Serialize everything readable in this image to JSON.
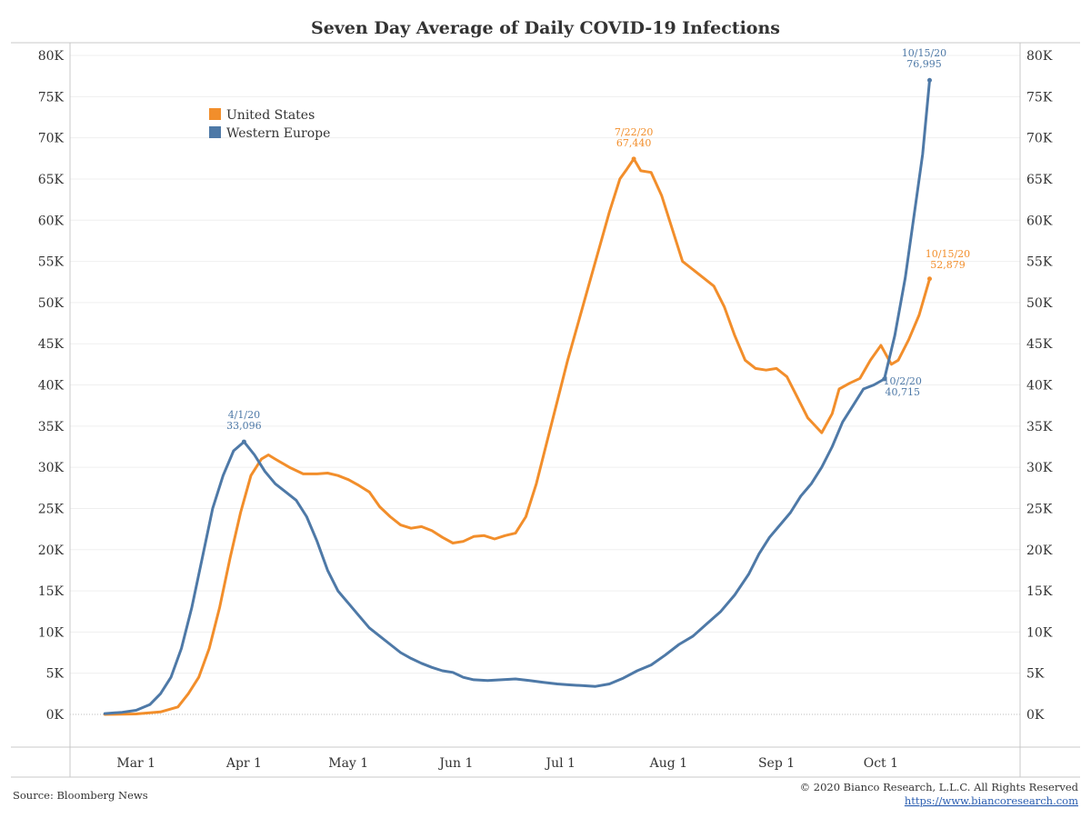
{
  "chart_data": {
    "type": "line",
    "title": "Seven Day Average of Daily COVID-19 Infections",
    "xlabel": "",
    "ylabel": "",
    "ylim": [
      0,
      80000
    ],
    "y_ticks": [
      "0K",
      "5K",
      "10K",
      "15K",
      "20K",
      "25K",
      "30K",
      "35K",
      "40K",
      "45K",
      "50K",
      "55K",
      "60K",
      "65K",
      "70K",
      "75K",
      "80K"
    ],
    "x_ticks": [
      "Mar 1",
      "Apr 1",
      "May 1",
      "Jun 1",
      "Jul 1",
      "Aug 1",
      "Sep 1",
      "Oct 1"
    ],
    "x_tick_dates": [
      "2020-03-01",
      "2020-04-01",
      "2020-05-01",
      "2020-06-01",
      "2020-07-01",
      "2020-08-01",
      "2020-09-01",
      "2020-10-01"
    ],
    "x_range": [
      "2020-02-11",
      "2020-11-10"
    ],
    "grid": true,
    "legend_position": "top-left",
    "series": [
      {
        "name": "United States",
        "color": "#f28e2b",
        "points": [
          [
            "2020-02-21",
            0
          ],
          [
            "2020-03-01",
            50
          ],
          [
            "2020-03-08",
            300
          ],
          [
            "2020-03-13",
            900
          ],
          [
            "2020-03-16",
            2500
          ],
          [
            "2020-03-19",
            4500
          ],
          [
            "2020-03-22",
            8000
          ],
          [
            "2020-03-25",
            13000
          ],
          [
            "2020-03-28",
            19000
          ],
          [
            "2020-03-31",
            24500
          ],
          [
            "2020-04-03",
            29000
          ],
          [
            "2020-04-06",
            31000
          ],
          [
            "2020-04-08",
            31500
          ],
          [
            "2020-04-10",
            31000
          ],
          [
            "2020-04-14",
            30000
          ],
          [
            "2020-04-18",
            29200
          ],
          [
            "2020-04-22",
            29200
          ],
          [
            "2020-04-25",
            29300
          ],
          [
            "2020-04-28",
            29000
          ],
          [
            "2020-05-01",
            28500
          ],
          [
            "2020-05-04",
            27800
          ],
          [
            "2020-05-07",
            27000
          ],
          [
            "2020-05-10",
            25200
          ],
          [
            "2020-05-13",
            24000
          ],
          [
            "2020-05-16",
            23000
          ],
          [
            "2020-05-19",
            22600
          ],
          [
            "2020-05-22",
            22800
          ],
          [
            "2020-05-25",
            22300
          ],
          [
            "2020-05-28",
            21500
          ],
          [
            "2020-05-31",
            20800
          ],
          [
            "2020-06-03",
            21000
          ],
          [
            "2020-06-06",
            21600
          ],
          [
            "2020-06-09",
            21700
          ],
          [
            "2020-06-12",
            21300
          ],
          [
            "2020-06-15",
            21700
          ],
          [
            "2020-06-18",
            22000
          ],
          [
            "2020-06-21",
            24000
          ],
          [
            "2020-06-24",
            28000
          ],
          [
            "2020-06-27",
            33000
          ],
          [
            "2020-06-30",
            38000
          ],
          [
            "2020-07-03",
            43000
          ],
          [
            "2020-07-06",
            47500
          ],
          [
            "2020-07-09",
            52000
          ],
          [
            "2020-07-12",
            56500
          ],
          [
            "2020-07-15",
            61000
          ],
          [
            "2020-07-18",
            65000
          ],
          [
            "2020-07-20",
            66200
          ],
          [
            "2020-07-22",
            67440
          ],
          [
            "2020-07-24",
            66000
          ],
          [
            "2020-07-27",
            65800
          ],
          [
            "2020-07-30",
            63000
          ],
          [
            "2020-08-02",
            59000
          ],
          [
            "2020-08-05",
            55000
          ],
          [
            "2020-08-08",
            54000
          ],
          [
            "2020-08-11",
            53000
          ],
          [
            "2020-08-14",
            52000
          ],
          [
            "2020-08-17",
            49500
          ],
          [
            "2020-08-20",
            46000
          ],
          [
            "2020-08-23",
            43000
          ],
          [
            "2020-08-26",
            42000
          ],
          [
            "2020-08-29",
            41800
          ],
          [
            "2020-09-01",
            42000
          ],
          [
            "2020-09-04",
            41000
          ],
          [
            "2020-09-07",
            38500
          ],
          [
            "2020-09-10",
            36000
          ],
          [
            "2020-09-14",
            34200
          ],
          [
            "2020-09-17",
            36500
          ],
          [
            "2020-09-19",
            39500
          ],
          [
            "2020-09-22",
            40200
          ],
          [
            "2020-09-25",
            40800
          ],
          [
            "2020-09-28",
            43000
          ],
          [
            "2020-10-01",
            44800
          ],
          [
            "2020-10-04",
            42500
          ],
          [
            "2020-10-06",
            43000
          ],
          [
            "2020-10-09",
            45500
          ],
          [
            "2020-10-12",
            48500
          ],
          [
            "2020-10-15",
            52879
          ]
        ]
      },
      {
        "name": "Western Europe",
        "color": "#4e79a7",
        "points": [
          [
            "2020-02-21",
            100
          ],
          [
            "2020-02-26",
            250
          ],
          [
            "2020-03-01",
            500
          ],
          [
            "2020-03-05",
            1200
          ],
          [
            "2020-03-08",
            2500
          ],
          [
            "2020-03-11",
            4500
          ],
          [
            "2020-03-14",
            8000
          ],
          [
            "2020-03-17",
            13000
          ],
          [
            "2020-03-20",
            19000
          ],
          [
            "2020-03-23",
            25000
          ],
          [
            "2020-03-26",
            29000
          ],
          [
            "2020-03-29",
            32000
          ],
          [
            "2020-04-01",
            33096
          ],
          [
            "2020-04-04",
            31500
          ],
          [
            "2020-04-07",
            29500
          ],
          [
            "2020-04-10",
            28000
          ],
          [
            "2020-04-13",
            27000
          ],
          [
            "2020-04-16",
            26000
          ],
          [
            "2020-04-19",
            24000
          ],
          [
            "2020-04-22",
            21000
          ],
          [
            "2020-04-25",
            17500
          ],
          [
            "2020-04-28",
            15000
          ],
          [
            "2020-05-01",
            13500
          ],
          [
            "2020-05-04",
            12000
          ],
          [
            "2020-05-07",
            10500
          ],
          [
            "2020-05-10",
            9500
          ],
          [
            "2020-05-13",
            8500
          ],
          [
            "2020-05-16",
            7500
          ],
          [
            "2020-05-19",
            6800
          ],
          [
            "2020-05-22",
            6200
          ],
          [
            "2020-05-25",
            5700
          ],
          [
            "2020-05-28",
            5300
          ],
          [
            "2020-05-31",
            5100
          ],
          [
            "2020-06-03",
            4500
          ],
          [
            "2020-06-06",
            4200
          ],
          [
            "2020-06-10",
            4100
          ],
          [
            "2020-06-14",
            4200
          ],
          [
            "2020-06-18",
            4300
          ],
          [
            "2020-06-22",
            4100
          ],
          [
            "2020-06-26",
            3900
          ],
          [
            "2020-06-30",
            3700
          ],
          [
            "2020-07-03",
            3600
          ],
          [
            "2020-07-07",
            3500
          ],
          [
            "2020-07-11",
            3400
          ],
          [
            "2020-07-15",
            3700
          ],
          [
            "2020-07-19",
            4400
          ],
          [
            "2020-07-23",
            5300
          ],
          [
            "2020-07-27",
            6000
          ],
          [
            "2020-07-31",
            7200
          ],
          [
            "2020-08-04",
            8500
          ],
          [
            "2020-08-08",
            9500
          ],
          [
            "2020-08-12",
            11000
          ],
          [
            "2020-08-16",
            12500
          ],
          [
            "2020-08-20",
            14500
          ],
          [
            "2020-08-24",
            17000
          ],
          [
            "2020-08-27",
            19500
          ],
          [
            "2020-08-30",
            21500
          ],
          [
            "2020-09-02",
            23000
          ],
          [
            "2020-09-05",
            24500
          ],
          [
            "2020-09-08",
            26500
          ],
          [
            "2020-09-11",
            28000
          ],
          [
            "2020-09-14",
            30000
          ],
          [
            "2020-09-17",
            32500
          ],
          [
            "2020-09-20",
            35500
          ],
          [
            "2020-09-23",
            37500
          ],
          [
            "2020-09-26",
            39500
          ],
          [
            "2020-09-29",
            40000
          ],
          [
            "2020-10-02",
            40715
          ],
          [
            "2020-10-05",
            46000
          ],
          [
            "2020-10-08",
            53000
          ],
          [
            "2020-10-11",
            62000
          ],
          [
            "2020-10-13",
            68000
          ],
          [
            "2020-10-15",
            76995
          ]
        ]
      }
    ],
    "annotations": [
      {
        "date_label": "4/1/20",
        "value_label": "33,096",
        "x": "2020-04-01",
        "y": 33096,
        "series": "Western Europe"
      },
      {
        "date_label": "7/22/20",
        "value_label": "67,440",
        "x": "2020-07-22",
        "y": 67440,
        "series": "United States"
      },
      {
        "date_label": "10/15/20",
        "value_label": "76,995",
        "x": "2020-10-15",
        "y": 76995,
        "series": "Western Europe"
      },
      {
        "date_label": "10/15/20",
        "value_label": "52,879",
        "x": "2020-10-15",
        "y": 52879,
        "series": "United States"
      },
      {
        "date_label": "10/2/20",
        "value_label": "40,715",
        "x": "2020-10-02",
        "y": 40715,
        "series": "Western Europe"
      }
    ]
  },
  "footer": {
    "source": "Source: Bloomberg News",
    "copyright": "© 2020 Bianco Research, L.L.C. All Rights Reserved",
    "url": "https://www.biancoresearch.com"
  }
}
